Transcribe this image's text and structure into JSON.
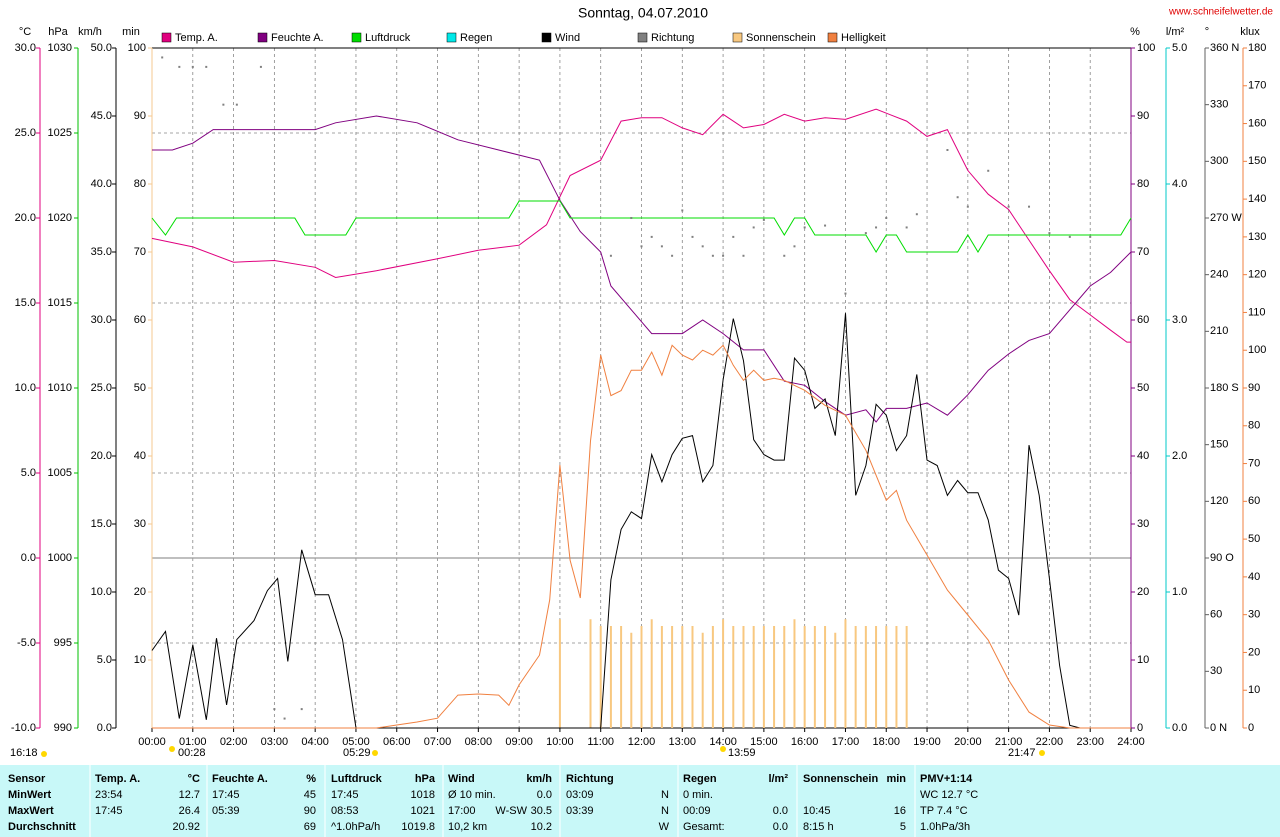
{
  "chart_data": {
    "type": "line",
    "title": "Sonntag, 04.07.2010",
    "source": "www.schneifelwetter.de",
    "events": [
      "16:18",
      "00:28",
      "05:29",
      "13:59",
      "21:47"
    ],
    "xlim": [
      0,
      24
    ],
    "xticks": [
      {
        "value": 0,
        "label": "00:00"
      },
      {
        "value": 1,
        "label": "01:00"
      },
      {
        "value": 2,
        "label": "02:00"
      },
      {
        "value": 3,
        "label": "03:00"
      },
      {
        "value": 4,
        "label": "04:00"
      },
      {
        "value": 5,
        "label": "05:00"
      },
      {
        "value": 6,
        "label": "06:00"
      },
      {
        "value": 7,
        "label": "07:00"
      },
      {
        "value": 8,
        "label": "08:00"
      },
      {
        "value": 9,
        "label": "09:00"
      },
      {
        "value": 10,
        "label": "10:00"
      },
      {
        "value": 11,
        "label": "11:00"
      },
      {
        "value": 12,
        "label": "12:00"
      },
      {
        "value": 13,
        "label": "13:00"
      },
      {
        "value": 14,
        "label": "14:00"
      },
      {
        "value": 15,
        "label": "15:00"
      },
      {
        "value": 16,
        "label": "16:00"
      },
      {
        "value": 17,
        "label": "17:00"
      },
      {
        "value": 18,
        "label": "18:00"
      },
      {
        "value": 19,
        "label": "19:00"
      },
      {
        "value": 20,
        "label": "20:00"
      },
      {
        "value": 21,
        "label": "21:00"
      },
      {
        "value": 22,
        "label": "22:00"
      },
      {
        "value": 23,
        "label": "23:00"
      },
      {
        "value": 24,
        "label": "24:00"
      }
    ],
    "grid": true,
    "axes": [
      {
        "unit": "°C",
        "color": "#e0007f",
        "lim": [
          -10,
          30
        ],
        "ticks": [
          {
            "value": -10,
            "label": "-10.0"
          },
          {
            "value": -5,
            "label": "-5.0"
          },
          {
            "value": 0,
            "label": "0.0"
          },
          {
            "value": 5,
            "label": "5.0"
          },
          {
            "value": 10,
            "label": "10.0"
          },
          {
            "value": 15,
            "label": "15.0"
          },
          {
            "value": 20,
            "label": "20.0"
          },
          {
            "value": 25,
            "label": "25.0"
          },
          {
            "value": 30,
            "label": "30.0"
          }
        ]
      },
      {
        "unit": "hPa",
        "color": "#00c000",
        "lim": [
          990,
          1030
        ],
        "ticks": [
          990,
          995,
          1000,
          1005,
          1010,
          1015,
          1020,
          1025,
          1030
        ]
      },
      {
        "unit": "km/h",
        "color": "#000000",
        "lim": [
          0,
          50
        ],
        "ticks": [
          {
            "value": 0,
            "label": "0.0"
          },
          {
            "value": 5,
            "label": "5.0"
          },
          {
            "value": 10,
            "label": "10.0"
          },
          {
            "value": 15,
            "label": "15.0"
          },
          {
            "value": 20,
            "label": "20.0"
          },
          {
            "value": 25,
            "label": "25.0"
          },
          {
            "value": 30,
            "label": "30.0"
          },
          {
            "value": 35,
            "label": "35.0"
          },
          {
            "value": 40,
            "label": "40.0"
          },
          {
            "value": 45,
            "label": "45.0"
          },
          {
            "value": 50,
            "label": "50.0"
          }
        ]
      },
      {
        "unit": "min",
        "color": "#f5c890",
        "lim": [
          0,
          100
        ],
        "ticks": [
          10,
          20,
          30,
          40,
          50,
          60,
          70,
          80,
          90,
          100
        ]
      },
      {
        "unit": "%",
        "color": "#800080",
        "lim": [
          0,
          100
        ],
        "ticks": [
          0,
          10,
          20,
          30,
          40,
          50,
          60,
          70,
          80,
          90,
          100
        ]
      },
      {
        "unit": "l/m²",
        "color": "#00c8c8",
        "lim": [
          0,
          5
        ],
        "ticks": [
          {
            "value": 0,
            "label": "0.0"
          },
          {
            "value": 1,
            "label": "1.0"
          },
          {
            "value": 2,
            "label": "2.0"
          },
          {
            "value": 3,
            "label": "3.0"
          },
          {
            "value": 4,
            "label": "4.0"
          },
          {
            "value": 5,
            "label": "5.0"
          }
        ]
      },
      {
        "unit": "°",
        "color": "#606060",
        "lim": [
          0,
          360
        ],
        "ticks": [
          {
            "value": 0,
            "label": "0 N"
          },
          30,
          60,
          {
            "value": 90,
            "label": "90 O"
          },
          120,
          150,
          {
            "value": 180,
            "label": "180 S"
          },
          210,
          240,
          {
            "value": 270,
            "label": "270 W"
          },
          300,
          330,
          {
            "value": 360,
            "label": "360 N"
          }
        ]
      },
      {
        "unit": "klux",
        "color": "#f08040",
        "lim": [
          0,
          180
        ],
        "ticks": [
          0,
          10,
          20,
          30,
          40,
          50,
          60,
          70,
          80,
          90,
          100,
          110,
          120,
          130,
          140,
          150,
          160,
          170,
          180
        ]
      }
    ],
    "series": [
      {
        "name": "Temp. A.",
        "color": "#e0007f",
        "axis": 0,
        "style": "line",
        "x": [
          0,
          1,
          2,
          3,
          4,
          4.5,
          5.5,
          7,
          8,
          9,
          9.67,
          10.25,
          11,
          11.5,
          12,
          12.5,
          13,
          13.5,
          14,
          14.5,
          15,
          15.5,
          16,
          16.5,
          17,
          17.75,
          18.5,
          19,
          19.5,
          20,
          20.5,
          21,
          21.5,
          22,
          22.5,
          23,
          23.5,
          23.9,
          24
        ],
        "values": [
          18.8,
          18.3,
          17.4,
          17.5,
          17.1,
          16.5,
          16.9,
          17.6,
          18.1,
          18.4,
          19.6,
          22.5,
          23.4,
          25.7,
          25.9,
          25.9,
          25.3,
          24.9,
          26.1,
          25.3,
          25.5,
          26.1,
          25.7,
          25.9,
          25.8,
          26.4,
          25.7,
          24.8,
          25.2,
          22.8,
          21.4,
          20.5,
          18.7,
          16.9,
          15.2,
          14.3,
          13.4,
          12.7,
          12.7
        ]
      },
      {
        "name": "Feuchte A.",
        "color": "#800080",
        "axis": 4,
        "style": "line",
        "x": [
          0,
          0.5,
          1,
          1.5,
          4,
          4.5,
          5.5,
          6.5,
          7.5,
          8.5,
          9.5,
          10,
          10.5,
          11,
          11.25,
          11.75,
          12.25,
          13,
          13.5,
          14,
          14.5,
          15,
          15.5,
          16,
          16.5,
          17,
          17.5,
          17.75,
          18,
          18.5,
          19,
          19.5,
          20,
          20.5,
          21,
          21.5,
          22,
          22.5,
          23,
          23.5,
          24
        ],
        "values": [
          85,
          85,
          86,
          88,
          88,
          89,
          90,
          89,
          86.5,
          85,
          83.5,
          77.6,
          73,
          70,
          65,
          61.5,
          58,
          58,
          60,
          58,
          55.6,
          55.6,
          51,
          50.4,
          48,
          46,
          46.8,
          45,
          47,
          47,
          47.8,
          46,
          49,
          52.6,
          55,
          57,
          58,
          61.5,
          65,
          67,
          70
        ]
      },
      {
        "name": "Luftdruck",
        "color": "#00dd00",
        "axis": 1,
        "style": "line",
        "x": [
          0,
          0.33,
          0.6,
          3.5,
          3.75,
          4.75,
          5,
          8.75,
          9,
          10,
          10.25,
          15.25,
          15.5,
          15.75,
          16,
          16.25,
          17.5,
          17.75,
          18,
          18.25,
          18.5,
          19.75,
          20,
          20.25,
          20.5,
          23.75,
          24
        ],
        "values": [
          1020,
          1019,
          1020,
          1020,
          1019,
          1019,
          1020,
          1020,
          1021,
          1021,
          1020,
          1020,
          1019,
          1020,
          1020,
          1019,
          1019,
          1018,
          1019,
          1019,
          1018,
          1018,
          1019,
          1018,
          1019,
          1019,
          1020
        ]
      },
      {
        "name": "Regen",
        "color": "#00e8e8",
        "axis": 5,
        "style": "line"
      },
      {
        "name": "Wind",
        "color": "#000000",
        "axis": 2,
        "style": "line",
        "x": [
          0,
          0.33,
          0.67,
          1,
          1.33,
          1.58,
          1.83,
          2.08,
          2.5,
          2.83,
          3.08,
          3.33,
          3.67,
          4,
          4.33,
          4.67,
          5,
          11,
          11.25,
          11.5,
          11.75,
          12,
          12.25,
          12.5,
          12.75,
          13,
          13.25,
          13.5,
          13.75,
          14,
          14.25,
          14.5,
          14.75,
          15,
          15.25,
          15.5,
          15.75,
          16,
          16.25,
          16.5,
          16.75,
          17,
          17.25,
          17.5,
          17.75,
          18,
          18.25,
          18.5,
          18.75,
          19,
          19.25,
          19.5,
          19.75,
          20,
          20.25,
          20.5,
          20.75,
          21,
          21.25,
          21.5,
          21.75,
          22,
          22.25,
          22.5,
          22.75,
          24
        ],
        "values": [
          5.7,
          7.1,
          0.7,
          6.1,
          0.6,
          6.6,
          1.7,
          6.5,
          7.9,
          10.1,
          11,
          4.9,
          13.1,
          9.8,
          9.8,
          6.5,
          0,
          0,
          10.9,
          14.6,
          15.9,
          15.4,
          20.1,
          18.1,
          20.1,
          21.3,
          21.5,
          18.1,
          19.3,
          25.6,
          30.1,
          27,
          21.2,
          20.1,
          19.7,
          19.7,
          27.2,
          26.3,
          23.5,
          24.2,
          21.5,
          30.5,
          17.1,
          19.3,
          23.8,
          23,
          20.4,
          21.5,
          26,
          19.7,
          19.3,
          17.1,
          18.2,
          17.3,
          17.3,
          15.3,
          11.6,
          11,
          8.3,
          20.8,
          17.1,
          11,
          4.6,
          0.2,
          0,
          0
        ]
      },
      {
        "name": "Richtung",
        "color": "#808080",
        "axis": 6,
        "style": "points",
        "x": [
          0.25,
          0.67,
          1,
          1.33,
          1.75,
          2.08,
          2.67,
          3,
          3.25,
          3.67,
          11.25,
          11.75,
          12,
          12.25,
          12.5,
          12.75,
          13,
          13.25,
          13.5,
          13.75,
          14,
          14.25,
          14.5,
          14.75,
          15,
          15.5,
          15.75,
          16,
          16.5,
          17,
          17.5,
          17.75,
          18,
          18.5,
          18.75,
          19.5,
          19.75,
          20,
          20.5,
          21,
          21.5,
          22,
          22.5,
          23
        ],
        "values": [
          355,
          350,
          350,
          350,
          330,
          330,
          350,
          10,
          5,
          10,
          250,
          270,
          255,
          260,
          255,
          250,
          274,
          260,
          255,
          250,
          250,
          260,
          250,
          265,
          269,
          250,
          255,
          265,
          266,
          230,
          262,
          265,
          270,
          265,
          272,
          306,
          281,
          276,
          295,
          276,
          276,
          262,
          260,
          260
        ]
      },
      {
        "name": "Sonnenschein",
        "color": "#f8c880",
        "axis": 3,
        "style": "bars",
        "x": [
          10,
          10.75,
          11,
          11.25,
          11.5,
          11.75,
          12,
          12.25,
          12.5,
          12.75,
          13,
          13.25,
          13.5,
          13.75,
          14,
          14.25,
          14.5,
          14.75,
          15,
          15.25,
          15.5,
          15.75,
          16,
          16.25,
          16.5,
          16.75,
          17,
          17.25,
          17.5,
          17.75,
          18,
          18.25,
          18.5
        ],
        "values": [
          16,
          16,
          15,
          15,
          15,
          14,
          15,
          16,
          15,
          15,
          15,
          15,
          14,
          15,
          16,
          15,
          15,
          15,
          15,
          15,
          15,
          16,
          15,
          15,
          15,
          14,
          16,
          15,
          15,
          15,
          15,
          15,
          15
        ]
      },
      {
        "name": "Helligkeit",
        "color": "#f08040",
        "axis": 7,
        "style": "line",
        "x": [
          0,
          5.5,
          6,
          6.5,
          7,
          7.5,
          8,
          8.5,
          8.75,
          9,
          9.5,
          9.75,
          10,
          10.25,
          10.5,
          10.75,
          11,
          11.25,
          11.5,
          11.75,
          12,
          12.25,
          12.5,
          12.75,
          13,
          13.25,
          13.5,
          13.75,
          14,
          14.25,
          14.5,
          14.75,
          15,
          15.25,
          15.5,
          15.75,
          16,
          16.5,
          17,
          17.5,
          18,
          18.25,
          18.5,
          19,
          19.5,
          20,
          20.5,
          21,
          21.5,
          22,
          22.5,
          24
        ],
        "values": [
          0,
          0,
          0.8,
          1.6,
          2.6,
          8.7,
          9,
          8.7,
          6,
          11.4,
          19.3,
          33.9,
          69.6,
          44.4,
          34.4,
          76,
          98.7,
          88,
          89.3,
          94.7,
          94.7,
          99.5,
          93.4,
          101.3,
          98.7,
          97.4,
          100,
          98.7,
          101.3,
          96,
          92,
          94.7,
          92,
          92.6,
          92,
          90.7,
          89.4,
          85.4,
          82.8,
          73.5,
          60.3,
          62.9,
          55,
          45.8,
          36.5,
          29.9,
          23.3,
          12.7,
          4.2,
          0.8,
          0,
          0
        ]
      }
    ]
  },
  "table": {
    "header": [
      "Sensor",
      "Temp. A.",
      "°C",
      "Feuchte A.",
      "%",
      "Luftdruck",
      "hPa",
      "Wind",
      null,
      "km/h",
      "Richtung",
      null,
      "Regen",
      "l/m²",
      "Sonnenschein",
      "min",
      "PMV+1:14"
    ],
    "rows": [
      [
        "MinWert",
        "23:54",
        "12.7",
        "17:45",
        "45",
        "17:45",
        "1018",
        "Ø 10 min.",
        null,
        "0.0",
        "03:09",
        "N",
        "0 min.",
        null,
        null,
        null,
        "WC 12.7 °C"
      ],
      [
        "MaxWert",
        "17:45",
        "26.4",
        "05:39",
        "90",
        "08:53",
        "1021",
        "17:00",
        "W-SW",
        "30.5",
        "03:39",
        "N",
        "00:09",
        "0.0",
        "10:45",
        "16",
        "TP 7.4 °C"
      ],
      [
        "Durchschnitt",
        null,
        "20.92",
        null,
        "69",
        "^1.0hPa/h",
        "1019.8",
        "10,2 km",
        null,
        "10.2",
        null,
        "W",
        "Gesamt:",
        "0.0",
        "8:15 h",
        "5",
        "1.0hPa/3h"
      ]
    ]
  }
}
